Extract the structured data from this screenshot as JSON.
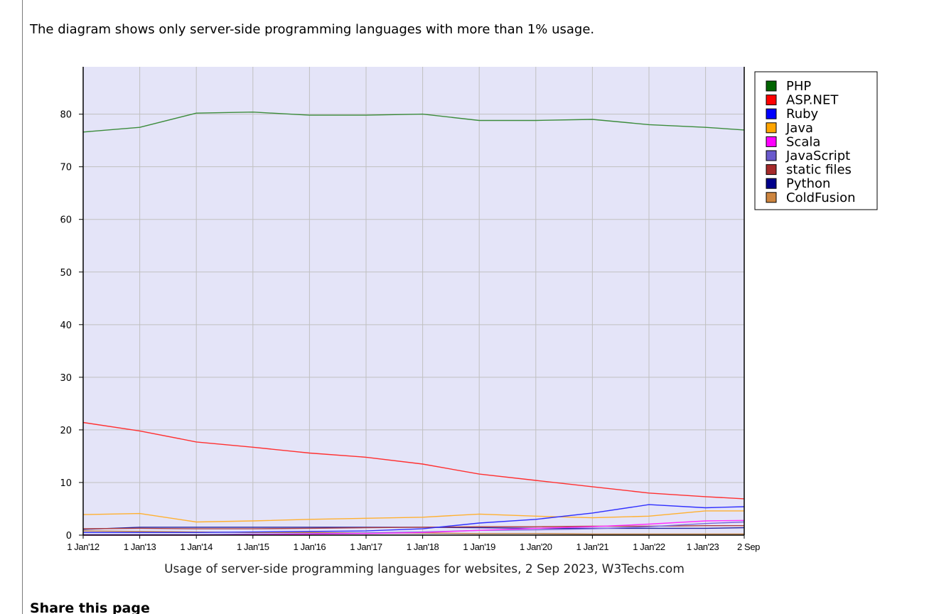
{
  "page": {
    "intro_text": "The diagram shows only server-side programming languages with more than 1% usage.",
    "share_heading": "Share this page"
  },
  "chart_data": {
    "type": "line",
    "title": "Usage of server-side programming languages for websites, 2 Sep 2023, W3Techs.com",
    "xlabel": "",
    "ylabel": "",
    "ylim": [
      0,
      89
    ],
    "grid": true,
    "legend_position": "right",
    "plot_background": "#e4e4f8",
    "x_dates": [
      "1 Jan'12",
      "1 Jan'13",
      "1 Jan'14",
      "1 Jan'15",
      "1 Jan'16",
      "1 Jan'17",
      "1 Jan'18",
      "1 Jan'19",
      "1 Jan'20",
      "1 Jan'21",
      "1 Jan'22",
      "1 Jan'23",
      "2 Sep 2023"
    ],
    "x_tick_labels": [
      "1 Jan'12",
      "1 Jan'13",
      "1 Jan'14",
      "1 Jan'15",
      "1 Jan'16",
      "1 Jan'17",
      "1 Jan'18",
      "1 Jan'19",
      "1 Jan'20",
      "1 Jan'21",
      "1 Jan'22",
      "1 Jan'23",
      "2 Sep"
    ],
    "y_ticks": [
      0,
      10,
      20,
      30,
      40,
      50,
      60,
      70,
      80
    ],
    "series": [
      {
        "name": "PHP",
        "color": "#006400",
        "line_color": "#3c8c3c",
        "values": [
          76.6,
          77.5,
          80.2,
          80.4,
          79.8,
          79.8,
          80.0,
          78.8,
          78.8,
          79.0,
          78.0,
          77.5,
          77.0
        ]
      },
      {
        "name": "ASP.NET",
        "color": "#ff0000",
        "line_color": "#ff3030",
        "values": [
          21.4,
          19.8,
          17.7,
          16.7,
          15.6,
          14.8,
          13.5,
          11.6,
          10.4,
          9.2,
          8.0,
          7.3,
          6.9
        ]
      },
      {
        "name": "Ruby",
        "color": "#0000ff",
        "line_color": "#3030ff",
        "values": [
          0.5,
          0.5,
          0.5,
          0.6,
          0.7,
          0.8,
          1.2,
          2.3,
          3.0,
          4.2,
          5.8,
          5.2,
          5.4
        ]
      },
      {
        "name": "Java",
        "color": "#ffa500",
        "line_color": "#ffb030",
        "values": [
          3.9,
          4.1,
          2.5,
          2.7,
          3.0,
          3.2,
          3.4,
          4.0,
          3.6,
          3.3,
          3.6,
          4.6,
          4.6
        ]
      },
      {
        "name": "Scala",
        "color": "#ff00ff",
        "line_color": "#ff30ff",
        "values": [
          0.0,
          0.0,
          0.0,
          0.1,
          0.2,
          0.3,
          0.5,
          0.9,
          1.3,
          1.6,
          2.1,
          2.7,
          2.8
        ]
      },
      {
        "name": "JavaScript",
        "color": "#6a5acd",
        "line_color": "#7a6adc",
        "values": [
          0.1,
          0.1,
          0.1,
          0.2,
          0.3,
          0.4,
          0.6,
          0.9,
          1.0,
          1.2,
          1.6,
          2.2,
          2.5
        ]
      },
      {
        "name": "static files",
        "color": "#a52a2a",
        "line_color": "#b04040",
        "values": [
          1.2,
          1.3,
          1.2,
          1.2,
          1.3,
          1.4,
          1.5,
          1.6,
          1.6,
          1.7,
          1.7,
          1.8,
          1.8
        ]
      },
      {
        "name": "Python",
        "color": "#00008b",
        "line_color": "#2020a0",
        "values": [
          1.1,
          1.5,
          1.5,
          1.5,
          1.5,
          1.5,
          1.5,
          1.4,
          1.3,
          1.3,
          1.3,
          1.3,
          1.4
        ]
      },
      {
        "name": "ColdFusion",
        "color": "#cd853f",
        "line_color": "#c08040",
        "values": [
          0.8,
          0.7,
          0.6,
          0.5,
          0.5,
          0.4,
          0.4,
          0.3,
          0.3,
          0.2,
          0.2,
          0.2,
          0.2
        ]
      }
    ]
  }
}
